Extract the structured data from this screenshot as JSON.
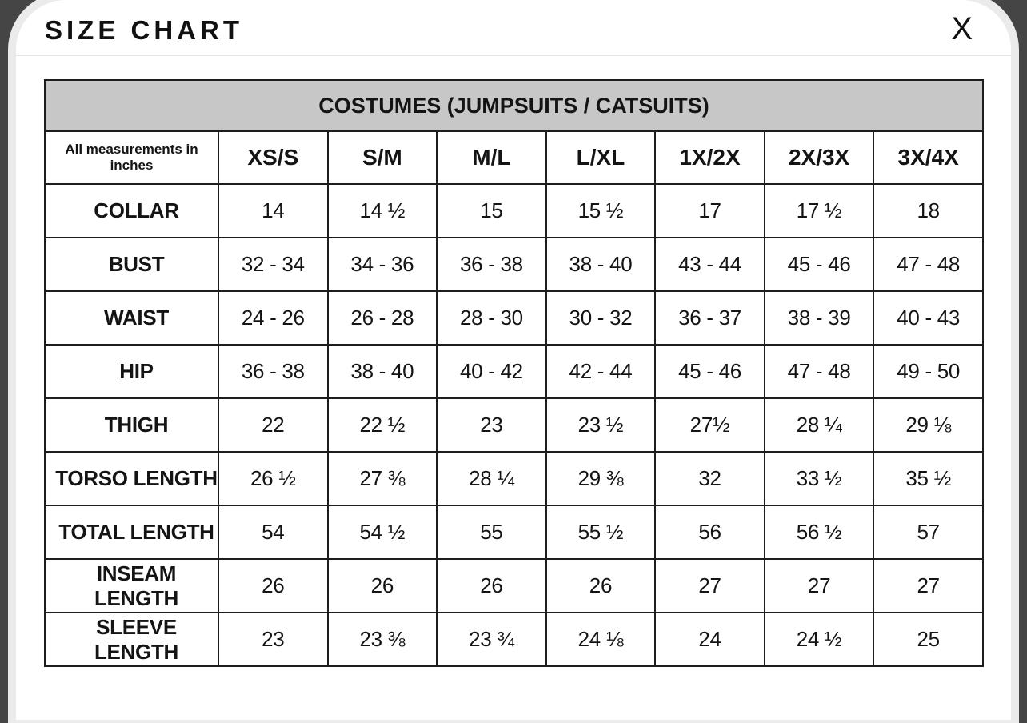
{
  "modal": {
    "title": "SIZE CHART",
    "close_label": "X"
  },
  "table": {
    "banner": "COSTUMES (JUMPSUITS / CATSUITS)",
    "corner_note": "All measurements in inches",
    "size_columns": [
      "XS/S",
      "S/M",
      "M/L",
      "L/XL",
      "1X/2X",
      "2X/3X",
      "3X/4X"
    ],
    "rows": [
      {
        "label": "COLLAR",
        "values": [
          "14",
          "14 ½",
          "15",
          "15 ½",
          "17",
          "17 ½",
          "18"
        ]
      },
      {
        "label": "BUST",
        "values": [
          "32 - 34",
          "34 - 36",
          "36 - 38",
          "38 - 40",
          "43 - 44",
          "45 - 46",
          "47 - 48"
        ]
      },
      {
        "label": "WAIST",
        "values": [
          "24 - 26",
          "26 - 28",
          "28 - 30",
          "30 - 32",
          "36 - 37",
          "38 - 39",
          "40 - 43"
        ]
      },
      {
        "label": "HIP",
        "values": [
          "36 - 38",
          "38 - 40",
          "40 - 42",
          "42 - 44",
          "45 - 46",
          "47 - 48",
          "49 - 50"
        ]
      },
      {
        "label": "THIGH",
        "values": [
          "22",
          "22 ½",
          "23",
          "23 ½",
          "27½",
          "28 ¼",
          "29 ⅛"
        ]
      },
      {
        "label": "TORSO LENGTH",
        "values": [
          "26 ½",
          "27 ⅜",
          "28 ¼",
          "29 ⅜",
          "32",
          "33 ½",
          "35 ½"
        ]
      },
      {
        "label": "TOTAL LENGTH",
        "values": [
          "54",
          "54 ½",
          "55",
          "55 ½",
          "56",
          "56 ½",
          "57"
        ]
      },
      {
        "label": "INSEAM LENGTH",
        "values": [
          "26",
          "26",
          "26",
          "26",
          "27",
          "27",
          "27"
        ]
      },
      {
        "label": "SLEEVE LENGTH",
        "values": [
          "23",
          "23 ⅜",
          "23 ¾",
          "24 ⅛",
          "24",
          "24 ½",
          "25"
        ]
      }
    ]
  },
  "colors": {
    "overlay_background": "#454545",
    "modal_background": "#ffffff",
    "modal_ring": "#ebebeb",
    "banner_background": "#c7c7c7",
    "table_border": "#1d1d1d",
    "text": "#141414"
  }
}
